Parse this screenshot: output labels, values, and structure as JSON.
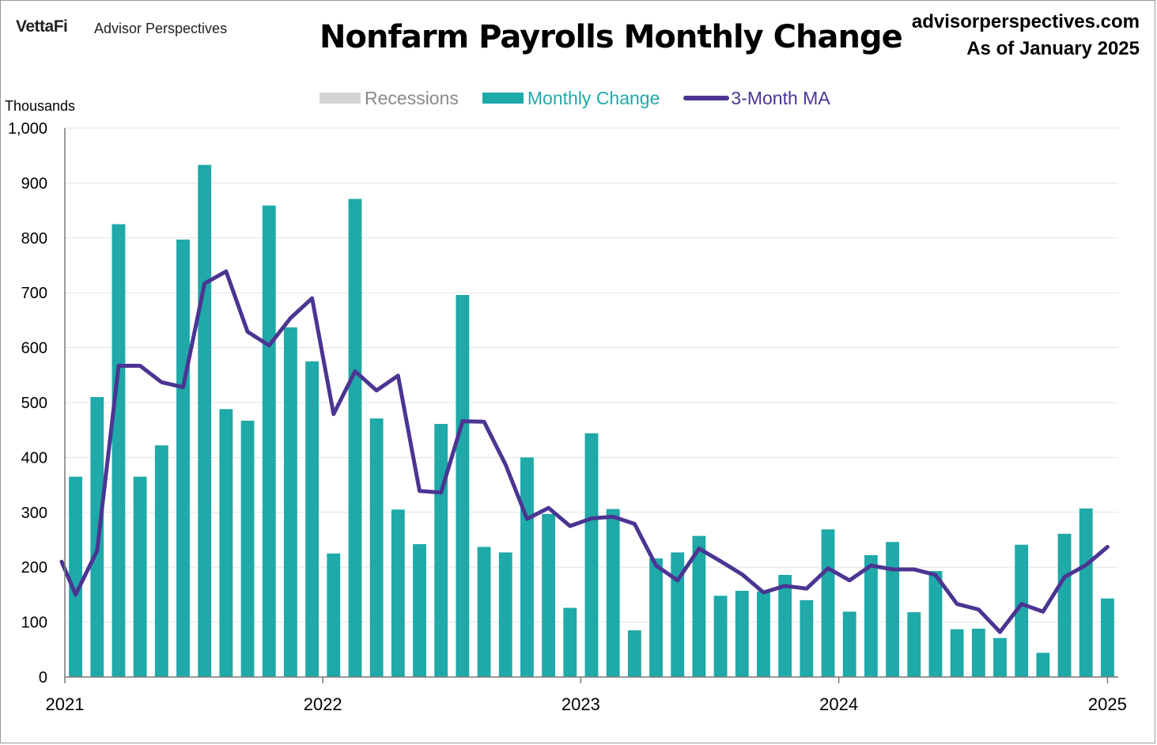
{
  "brand": {
    "logo_text": "VettaFi",
    "sub_text": "Advisor Perspectives"
  },
  "header": {
    "site": "advisorperspectives.com",
    "as_of": "As of January 2025"
  },
  "colors": {
    "bar": "#1fa9a9",
    "line": "#4b3592",
    "recession": "#d4d4d4",
    "grid": "#e3e3e3"
  },
  "chart_data": {
    "type": "bar",
    "title": "Nonfarm Payrolls Monthly Change",
    "ylabel": "Thousands",
    "xlabel": "",
    "ylim": [
      0,
      1000
    ],
    "y_ticks": [
      0,
      100,
      200,
      300,
      400,
      500,
      600,
      700,
      800,
      900,
      1000
    ],
    "y_tick_labels": [
      "0",
      "100",
      "200",
      "300",
      "400",
      "500",
      "600",
      "700",
      "800",
      "900",
      "1,000"
    ],
    "x_tick_labels": [
      "2021",
      "2022",
      "2023",
      "2024",
      "2025"
    ],
    "legend": [
      {
        "label": "Recessions",
        "kind": "box",
        "color": "#d4d4d4"
      },
      {
        "label": "Monthly Change",
        "kind": "box",
        "color": "#1fa9a9"
      },
      {
        "label": "3-Month MA",
        "kind": "line",
        "color": "#4b3592"
      }
    ],
    "categories": [
      "Jan 2021",
      "Feb 2021",
      "Mar 2021",
      "Apr 2021",
      "May 2021",
      "Jun 2021",
      "Jul 2021",
      "Aug 2021",
      "Sep 2021",
      "Oct 2021",
      "Nov 2021",
      "Dec 2021",
      "Jan 2022",
      "Feb 2022",
      "Mar 2022",
      "Apr 2022",
      "May 2022",
      "Jun 2022",
      "Jul 2022",
      "Aug 2022",
      "Sep 2022",
      "Oct 2022",
      "Nov 2022",
      "Dec 2022",
      "Jan 2023",
      "Feb 2023",
      "Mar 2023",
      "Apr 2023",
      "May 2023",
      "Jun 2023",
      "Jul 2023",
      "Aug 2023",
      "Sep 2023",
      "Oct 2023",
      "Nov 2023",
      "Dec 2023",
      "Jan 2024",
      "Feb 2024",
      "Mar 2024",
      "Apr 2024",
      "May 2024",
      "Jun 2024",
      "Jul 2024",
      "Aug 2024",
      "Sep 2024",
      "Oct 2024",
      "Nov 2024",
      "Dec 2024",
      "Jan 2025"
    ],
    "series": [
      {
        "name": "Monthly Change",
        "type": "bar",
        "values": [
          365,
          510,
          825,
          365,
          422,
          797,
          933,
          488,
          467,
          859,
          637,
          575,
          225,
          871,
          471,
          305,
          242,
          461,
          696,
          237,
          227,
          400,
          297,
          126,
          444,
          306,
          85,
          216,
          227,
          257,
          148,
          157,
          156,
          186,
          140,
          269,
          119,
          222,
          246,
          118,
          193,
          87,
          88,
          71,
          241,
          44,
          261,
          307,
          143
        ]
      },
      {
        "name": "3-Month MA",
        "type": "line",
        "values": [
          150,
          230,
          567,
          567,
          537,
          528,
          717,
          739,
          629,
          604,
          654,
          690,
          479,
          557,
          522,
          549,
          339,
          336,
          466,
          465,
          387,
          288,
          308,
          275,
          289,
          292,
          279,
          203,
          176,
          234,
          211,
          187,
          154,
          166,
          161,
          198,
          176,
          203,
          196,
          196,
          186,
          133,
          123,
          82,
          133,
          119,
          182,
          204,
          237
        ]
      }
    ]
  }
}
